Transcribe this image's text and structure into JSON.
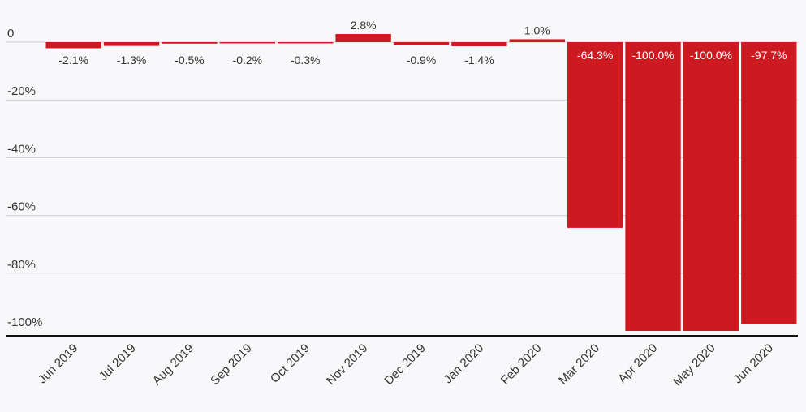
{
  "chart_data": {
    "type": "bar",
    "title": "",
    "xlabel": "",
    "ylabel": "",
    "categories": [
      "Jun 2019",
      "Jul 2019",
      "Aug 2019",
      "Sep 2019",
      "Oct 2019",
      "Nov 2019",
      "Dec 2019",
      "Jan 2020",
      "Feb 2020",
      "Mar 2020",
      "Apr 2020",
      "May 2020",
      "Jun 2020"
    ],
    "values": [
      -2.1,
      -1.3,
      -0.5,
      -0.2,
      -0.3,
      2.8,
      -0.9,
      -1.4,
      1.0,
      -64.3,
      -100.0,
      -100.0,
      -97.7
    ],
    "data_labels": [
      "-2.1%",
      "-1.3%",
      "-0.5%",
      "-0.2%",
      "-0.3%",
      "2.8%",
      "-0.9%",
      "-1.4%",
      "1.0%",
      "-64.3%",
      "-100.0%",
      "-100.0%",
      "-97.7%"
    ],
    "ylim": [
      -100,
      0
    ],
    "yticks": [
      0,
      -20,
      -40,
      -60,
      -80,
      -100
    ],
    "ytick_labels": [
      "0",
      "-20%",
      "-40%",
      "-60%",
      "-80%",
      "-100%"
    ],
    "grid": true,
    "legend": "none",
    "colors": {
      "bar": "#cc1a20",
      "grid": "#cfcfd4",
      "axis": "#111111",
      "text": "#333333",
      "label_inside": "#ffffff",
      "background": "#f8f8fa"
    }
  }
}
